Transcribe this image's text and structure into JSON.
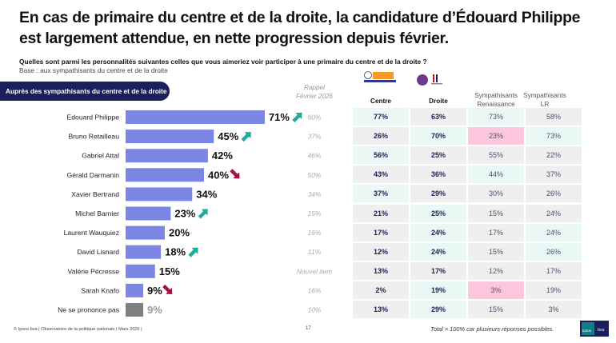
{
  "title": "En cas de primaire du centre et de la droite, la candidature d’Édouard Philippe est largement attendue, en nette progression depuis février.",
  "question": "Quelles sont parmi les personnalités suivantes celles que vous aimeriez voir participer à une primaire du centre et de la droite ?",
  "base": "Base : aux sympathisants du centre et de la droite",
  "segment_label": "Auprès des sympathisants du centre et de la droite",
  "rappel_label": [
    "Rappel",
    "Février 2026"
  ],
  "colors": {
    "bar": "#7b86e2",
    "bar_nsp": "#7f7f7f",
    "up_arrow": "#1eaa9c",
    "down_arrow": "#a3133f",
    "pill_bg": "#1b1f5c",
    "cell_mint": "#eaf8f5",
    "cell_gray": "#efefef",
    "cell_pink": "#fcc7dc"
  },
  "chart_data": {
    "type": "bar",
    "orientation": "horizontal",
    "title": "Auprès des sympathisants du centre et de la droite",
    "categories": [
      "Edouard Philippe",
      "Bruno Retailleau",
      "Gabriel Attal",
      "Gérald Darmanin",
      "Xavier Bertrand",
      "Michel Barnier",
      "Laurent Wauquiez",
      "David Lisnard",
      "Valérie Pécresse",
      "Sarah Knafo",
      "Ne se prononce pas"
    ],
    "series": [
      {
        "name": "Mars 2026",
        "values": [
          71,
          45,
          42,
          40,
          34,
          23,
          20,
          18,
          15,
          9,
          9
        ],
        "unit": "%"
      }
    ],
    "value_labels": [
      "71%",
      "45%",
      "42%",
      "40%",
      "34%",
      "23%",
      "20%",
      "18%",
      "15%",
      "9%",
      "9%"
    ],
    "trend": [
      "up",
      "up",
      "none",
      "down",
      "none",
      "up",
      "none",
      "up",
      "none",
      "down",
      "none"
    ],
    "rappel_fevrier_2026": [
      "60%",
      "37%",
      "46%",
      "50%",
      "34%",
      "15%",
      "16%",
      "11%",
      "Nouvel item",
      "16%",
      "10%"
    ],
    "xlim": [
      0,
      100
    ],
    "grid": false,
    "legend": "none"
  },
  "table": {
    "columns": [
      {
        "label": "Centre",
        "logo": "Renaissance / Horizons logos"
      },
      {
        "label": "Droite",
        "logo": "UDI / Les Républicains logos"
      },
      {
        "label": "Sympathisants Renaissance"
      },
      {
        "label": "Sympathisants LR"
      }
    ],
    "rows": [
      {
        "values": [
          "77%",
          "63%",
          "73%",
          "58%"
        ],
        "shading": [
          "mint",
          "gray",
          "mint",
          "gray"
        ]
      },
      {
        "values": [
          "26%",
          "70%",
          "23%",
          "73%"
        ],
        "shading": [
          "gray",
          "mint",
          "pink",
          "mint"
        ]
      },
      {
        "values": [
          "56%",
          "25%",
          "55%",
          "22%"
        ],
        "shading": [
          "mint",
          "gray",
          "gray",
          "gray"
        ]
      },
      {
        "values": [
          "43%",
          "36%",
          "44%",
          "37%"
        ],
        "shading": [
          "gray",
          "gray",
          "mint",
          "gray"
        ]
      },
      {
        "values": [
          "37%",
          "29%",
          "30%",
          "26%"
        ],
        "shading": [
          "mint",
          "gray",
          "gray",
          "gray"
        ]
      },
      {
        "values": [
          "21%",
          "25%",
          "15%",
          "24%"
        ],
        "shading": [
          "gray",
          "mint",
          "gray",
          "gray"
        ]
      },
      {
        "values": [
          "17%",
          "24%",
          "17%",
          "24%"
        ],
        "shading": [
          "gray",
          "mint",
          "gray",
          "mint"
        ]
      },
      {
        "values": [
          "12%",
          "24%",
          "15%",
          "26%"
        ],
        "shading": [
          "gray",
          "mint",
          "gray",
          "mint"
        ]
      },
      {
        "values": [
          "13%",
          "17%",
          "12%",
          "17%"
        ],
        "shading": [
          "gray",
          "gray",
          "gray",
          "gray"
        ]
      },
      {
        "values": [
          "2%",
          "19%",
          "3%",
          "19%"
        ],
        "shading": [
          "gray",
          "mint",
          "pink",
          "gray"
        ]
      },
      {
        "values": [
          "13%",
          "29%",
          "15%",
          "3%"
        ],
        "shading": [
          "gray",
          "mint",
          "gray",
          "gray"
        ]
      }
    ]
  },
  "footer": {
    "source": "© Ipsos bva | Observatoire de la politique nationale | Mars 2026 |",
    "page": "17",
    "note": "Total > 100% car plusieurs réponses possibles.",
    "brand": [
      "Ipsos",
      "bva"
    ]
  }
}
